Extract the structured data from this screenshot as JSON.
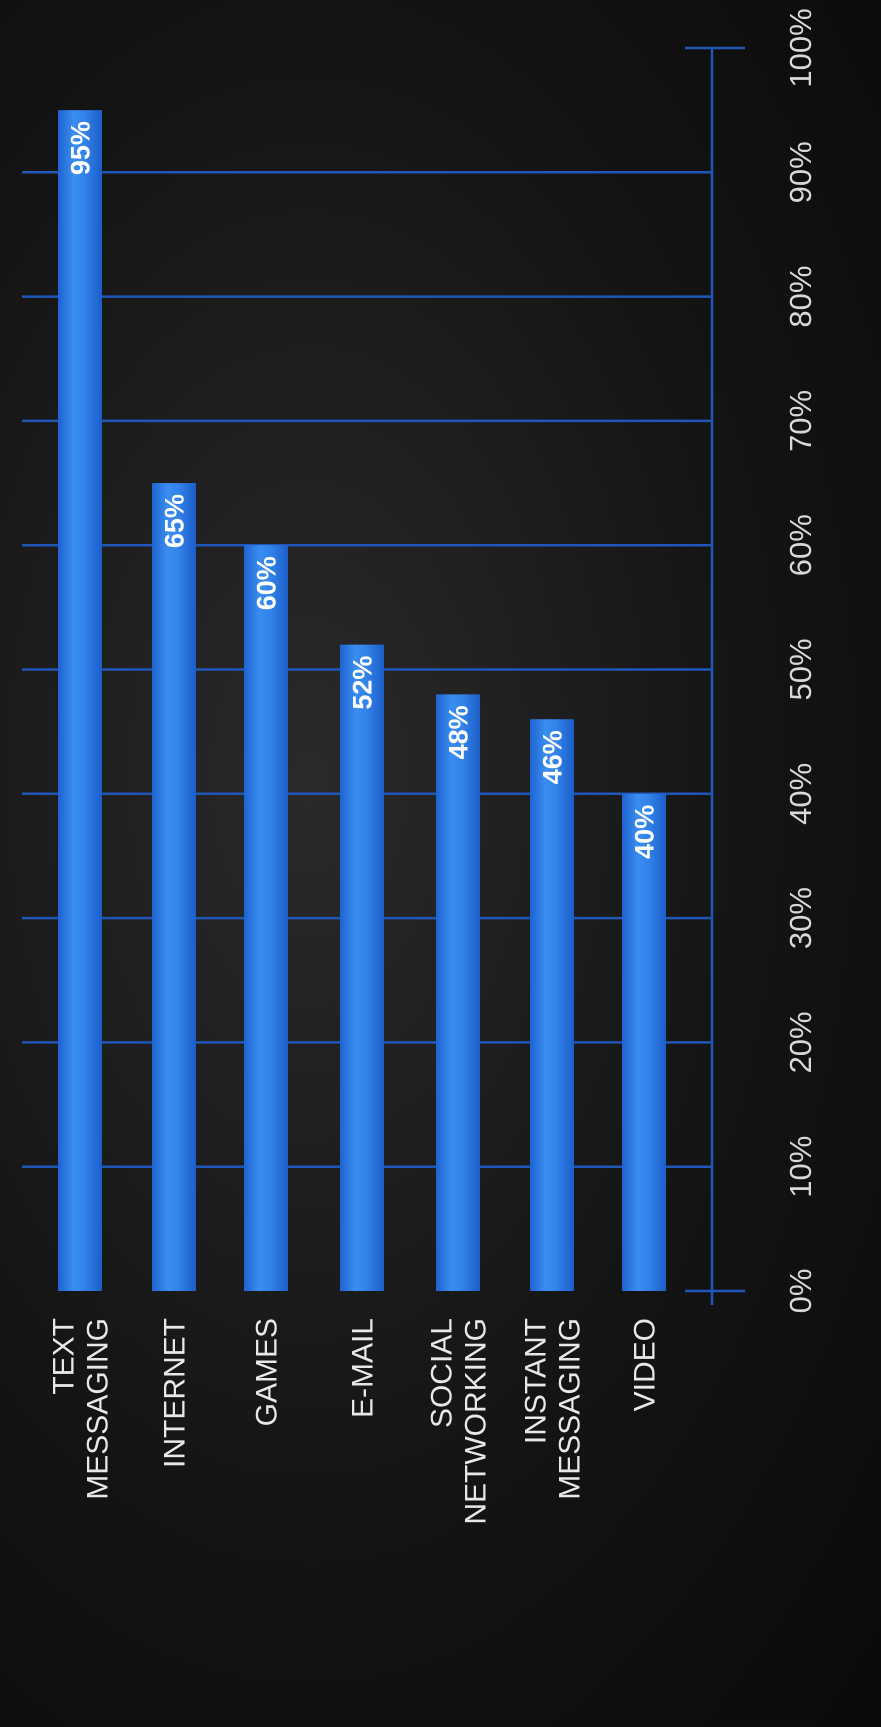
{
  "chart_data": {
    "type": "bar",
    "orientation": "horizontal, rotated 90° counter-clockwise",
    "categories": [
      [
        "TEXT",
        "MESSAGING"
      ],
      [
        "INTERNET"
      ],
      [
        "GAMES"
      ],
      [
        "E-MAIL"
      ],
      [
        "SOCIAL",
        "NETWORKING"
      ],
      [
        "INSTANT",
        "MESSAGING"
      ],
      [
        "VIDEO"
      ]
    ],
    "values": [
      95,
      65,
      60,
      52,
      48,
      46,
      40
    ],
    "value_labels": [
      "95%",
      "65%",
      "60%",
      "52%",
      "48%",
      "46%",
      "40%"
    ],
    "axis": {
      "ticks": [
        0,
        10,
        20,
        30,
        40,
        50,
        60,
        70,
        80,
        90,
        100
      ],
      "tick_labels": [
        "0%",
        "10%",
        "20%",
        "30%",
        "40%",
        "50%",
        "60%",
        "70%",
        "80%",
        "90%",
        "100%"
      ],
      "range": [
        0,
        100
      ]
    },
    "grid": true,
    "title": "",
    "xlabel": "",
    "ylabel": "",
    "colors": {
      "bar": "#2a7be8",
      "bar_light": "#4a9bf5",
      "grid": "#1f56b8",
      "background": "#141414"
    }
  }
}
